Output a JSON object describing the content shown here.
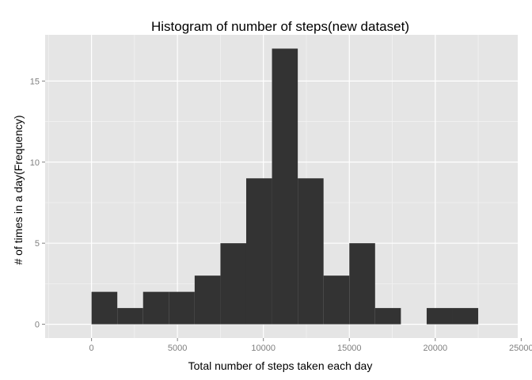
{
  "chart_data": {
    "type": "bar",
    "title": "Histogram of number of steps(new dataset)",
    "xlabel": "Total number of steps taken each day",
    "ylabel": "# of times in a day(Frequency)",
    "xlim": [
      -2700,
      24800
    ],
    "ylim": [
      -0.85,
      17.85
    ],
    "x_ticks": [
      0,
      5000,
      10000,
      15000,
      20000,
      25000
    ],
    "x_tick_labels": [
      "0",
      "5000",
      "10000",
      "15000",
      "20000",
      "25000"
    ],
    "y_ticks": [
      0,
      5,
      10,
      15
    ],
    "y_tick_labels": [
      "0",
      "5",
      "10",
      "15"
    ],
    "grid": true,
    "bin_width": 1500,
    "bins": [
      {
        "x0": 0,
        "x1": 1500,
        "count": 2
      },
      {
        "x0": 1500,
        "x1": 3000,
        "count": 1
      },
      {
        "x0": 3000,
        "x1": 4500,
        "count": 2
      },
      {
        "x0": 4500,
        "x1": 6000,
        "count": 2
      },
      {
        "x0": 6000,
        "x1": 7500,
        "count": 3
      },
      {
        "x0": 7500,
        "x1": 9000,
        "count": 5
      },
      {
        "x0": 9000,
        "x1": 10500,
        "count": 9
      },
      {
        "x0": 10500,
        "x1": 12000,
        "count": 17
      },
      {
        "x0": 12000,
        "x1": 13500,
        "count": 9
      },
      {
        "x0": 13500,
        "x1": 15000,
        "count": 3
      },
      {
        "x0": 15000,
        "x1": 16500,
        "count": 5
      },
      {
        "x0": 16500,
        "x1": 18000,
        "count": 1
      },
      {
        "x0": 18000,
        "x1": 19500,
        "count": 0
      },
      {
        "x0": 19500,
        "x1": 21000,
        "count": 1
      },
      {
        "x0": 21000,
        "x1": 22500,
        "count": 1
      }
    ],
    "colors": {
      "panel": "#e5e5e5",
      "grid_major": "#ffffff",
      "grid_minor": "#f2f2f2",
      "bar": "#333333",
      "tick": "#7f7f7f"
    }
  }
}
